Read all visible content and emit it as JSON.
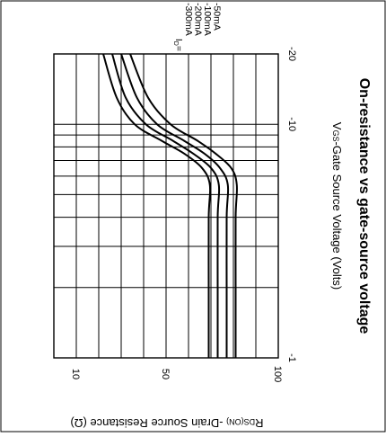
{
  "chart_data": {
    "type": "line",
    "title": "On-resistance vs gate-source voltage",
    "xlabel_main": "V",
    "xlabel_sub": "GS",
    "xlabel_rest": "-Gate Source Voltage (Volts)",
    "ylabel_main": "R",
    "ylabel_sub": "DS(ON)",
    "ylabel_rest": " -Drain Source Resistance (Ω)",
    "x_scale": "log",
    "x_ticks": [
      {
        "label": "-1",
        "value": -1
      },
      {
        "label": "-10",
        "value": -10
      },
      {
        "label": "-20",
        "value": -20
      }
    ],
    "y_ticks": [
      {
        "label": "100",
        "value": 100
      },
      {
        "label": "50",
        "value": 50
      },
      {
        "label": "10",
        "value": 10
      }
    ],
    "xlim": [
      -1,
      -20
    ],
    "ylim": [
      0,
      100
    ],
    "grid": true,
    "legend_header": "I",
    "legend_header_sub": "D",
    "legend_header_suffix": "=",
    "series": [
      {
        "name": "-300mA",
        "x": [
          -1,
          -2,
          -4,
          -5.5,
          -6.5,
          -7.5,
          -8.5,
          -10,
          -13,
          -20
        ],
        "y": [
          81,
          81,
          81,
          81.5,
          79,
          72,
          64,
          52,
          42,
          34
        ]
      },
      {
        "name": "-200mA",
        "x": [
          -1,
          -2,
          -4,
          -5.5,
          -6.5,
          -7.5,
          -8.5,
          -10,
          -13,
          -20
        ],
        "y": [
          77,
          77,
          77,
          77.5,
          74,
          67,
          58,
          46,
          37,
          30
        ]
      },
      {
        "name": "-100mA",
        "x": [
          -1,
          -2,
          -4,
          -5.5,
          -6.5,
          -7.5,
          -8.5,
          -10,
          -13,
          -20
        ],
        "y": [
          73,
          73,
          73,
          73.5,
          70,
          62,
          53,
          41,
          32,
          26
        ]
      },
      {
        "name": "-50mA",
        "x": [
          -1,
          -2,
          -4,
          -5.5,
          -6.5,
          -7.5,
          -8.5,
          -10,
          -13,
          -20
        ],
        "y": [
          69,
          69,
          69,
          69.5,
          66,
          58,
          48,
          36,
          28,
          22
        ]
      }
    ]
  }
}
